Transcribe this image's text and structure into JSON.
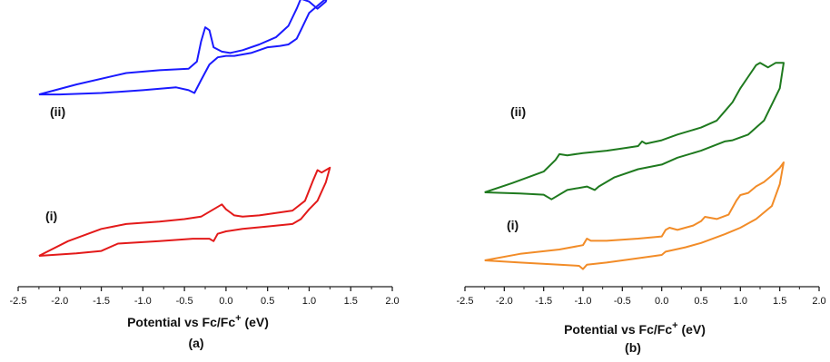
{
  "chart_data": [
    {
      "type": "line",
      "panel_label": "(a)",
      "xlabel": "Potential vs Fc/Fc",
      "xlabel_sup": "+",
      "xlabel_unit": " (eV)",
      "xlim": [
        -2.5,
        2.0
      ],
      "xticks": [
        "-2.5",
        "-2.0",
        "-1.5",
        "-1.0",
        "-0.5",
        "0.0",
        "0.5",
        "1.0",
        "1.5",
        "2.0"
      ],
      "series": [
        {
          "name": "(ii)",
          "color": "#1a1aff",
          "x": [
            -2.25,
            -1.8,
            -1.2,
            -0.8,
            -0.45,
            -0.35,
            -0.3,
            -0.25,
            -0.2,
            -0.15,
            -0.05,
            0.05,
            0.2,
            0.4,
            0.6,
            0.75,
            0.85,
            0.9,
            1.0,
            1.1,
            1.2,
            1.25,
            1.2,
            1.0,
            0.9,
            0.85,
            0.75,
            0.65,
            0.5,
            0.3,
            0.1,
            0.0,
            -0.1,
            -0.2,
            -0.3,
            -0.38,
            -0.45,
            -0.6,
            -1.0,
            -1.5,
            -2.0,
            -2.25
          ],
          "y": [
            0.45,
            0.52,
            0.6,
            0.62,
            0.63,
            0.68,
            0.82,
            0.92,
            0.9,
            0.78,
            0.75,
            0.74,
            0.76,
            0.8,
            0.85,
            0.93,
            1.05,
            1.12,
            1.1,
            1.05,
            1.1,
            1.2,
            1.12,
            1.02,
            0.9,
            0.84,
            0.8,
            0.79,
            0.78,
            0.74,
            0.72,
            0.72,
            0.71,
            0.66,
            0.55,
            0.46,
            0.48,
            0.5,
            0.48,
            0.46,
            0.45,
            0.45
          ]
        },
        {
          "name": "(i)",
          "color": "#e31a1a",
          "x": [
            -2.25,
            -1.9,
            -1.5,
            -1.2,
            -0.8,
            -0.5,
            -0.3,
            -0.15,
            -0.05,
            0.0,
            0.1,
            0.2,
            0.4,
            0.6,
            0.8,
            0.95,
            1.05,
            1.1,
            1.15,
            1.2,
            1.25,
            1.2,
            1.1,
            1.0,
            0.9,
            0.8,
            0.5,
            0.2,
            0.0,
            -0.1,
            -0.15,
            -0.2,
            -0.4,
            -0.8,
            -1.3,
            -1.5,
            -1.8,
            -2.25
          ],
          "y": [
            0.0,
            0.12,
            0.22,
            0.26,
            0.28,
            0.3,
            0.32,
            0.38,
            0.42,
            0.38,
            0.33,
            0.32,
            0.33,
            0.35,
            0.37,
            0.45,
            0.62,
            0.7,
            0.68,
            0.7,
            0.72,
            0.6,
            0.45,
            0.38,
            0.3,
            0.26,
            0.24,
            0.22,
            0.2,
            0.18,
            0.12,
            0.14,
            0.14,
            0.12,
            0.1,
            0.04,
            0.02,
            0.0
          ]
        }
      ],
      "annotations": [
        "(ii)",
        "(i)"
      ]
    },
    {
      "type": "line",
      "panel_label": "(b)",
      "xlabel": "Potential vs Fc/Fc",
      "xlabel_sup": "+",
      "xlabel_unit": " (eV)",
      "xlim": [
        -2.5,
        2.0
      ],
      "xticks": [
        "-2.5",
        "-2.0",
        "-1.5",
        "-1.0",
        "-0.5",
        "0.0",
        "0.5",
        "1.0",
        "1.5",
        "2.0"
      ],
      "series": [
        {
          "name": "(ii)",
          "color": "#1f7a1f",
          "x": [
            -2.25,
            -1.9,
            -1.5,
            -1.35,
            -1.3,
            -1.2,
            -1.0,
            -0.7,
            -0.5,
            -0.3,
            -0.25,
            -0.2,
            0.0,
            0.2,
            0.5,
            0.7,
            0.8,
            0.9,
            1.0,
            1.1,
            1.2,
            1.25,
            1.35,
            1.45,
            1.55,
            1.5,
            1.3,
            1.1,
            0.9,
            0.8,
            0.5,
            0.2,
            0.0,
            -0.3,
            -0.6,
            -0.8,
            -0.85,
            -0.95,
            -1.2,
            -1.4,
            -1.5,
            -1.8,
            -2.25
          ],
          "y": [
            0.0,
            0.08,
            0.18,
            0.28,
            0.33,
            0.32,
            0.34,
            0.36,
            0.38,
            0.4,
            0.44,
            0.42,
            0.45,
            0.5,
            0.56,
            0.62,
            0.7,
            0.78,
            0.9,
            1.0,
            1.1,
            1.12,
            1.08,
            1.12,
            1.12,
            0.9,
            0.62,
            0.5,
            0.45,
            0.44,
            0.36,
            0.3,
            0.24,
            0.2,
            0.13,
            0.05,
            0.02,
            0.05,
            0.02,
            -0.06,
            -0.02,
            -0.01,
            0.0
          ]
        },
        {
          "name": "(i)",
          "color": "#f28c28",
          "x": [
            -2.25,
            -1.8,
            -1.3,
            -1.0,
            -0.95,
            -0.9,
            -0.7,
            -0.3,
            0.0,
            0.05,
            0.1,
            0.2,
            0.4,
            0.5,
            0.55,
            0.7,
            0.85,
            0.95,
            1.0,
            1.1,
            1.2,
            1.3,
            1.4,
            1.5,
            1.55,
            1.5,
            1.4,
            1.2,
            1.0,
            0.8,
            0.5,
            0.3,
            0.05,
            0.0,
            -0.3,
            -0.7,
            -0.95,
            -1.0,
            -1.05,
            -1.3,
            -1.8,
            -2.25
          ],
          "y": [
            0.0,
            0.06,
            0.1,
            0.14,
            0.2,
            0.18,
            0.18,
            0.2,
            0.22,
            0.28,
            0.3,
            0.28,
            0.32,
            0.36,
            0.4,
            0.38,
            0.42,
            0.55,
            0.6,
            0.62,
            0.68,
            0.72,
            0.78,
            0.85,
            0.9,
            0.7,
            0.5,
            0.38,
            0.3,
            0.24,
            0.16,
            0.12,
            0.08,
            0.05,
            0.02,
            -0.02,
            -0.04,
            -0.08,
            -0.05,
            -0.04,
            -0.02,
            0.0
          ]
        }
      ],
      "annotations": [
        "(ii)",
        "(i)"
      ]
    }
  ]
}
